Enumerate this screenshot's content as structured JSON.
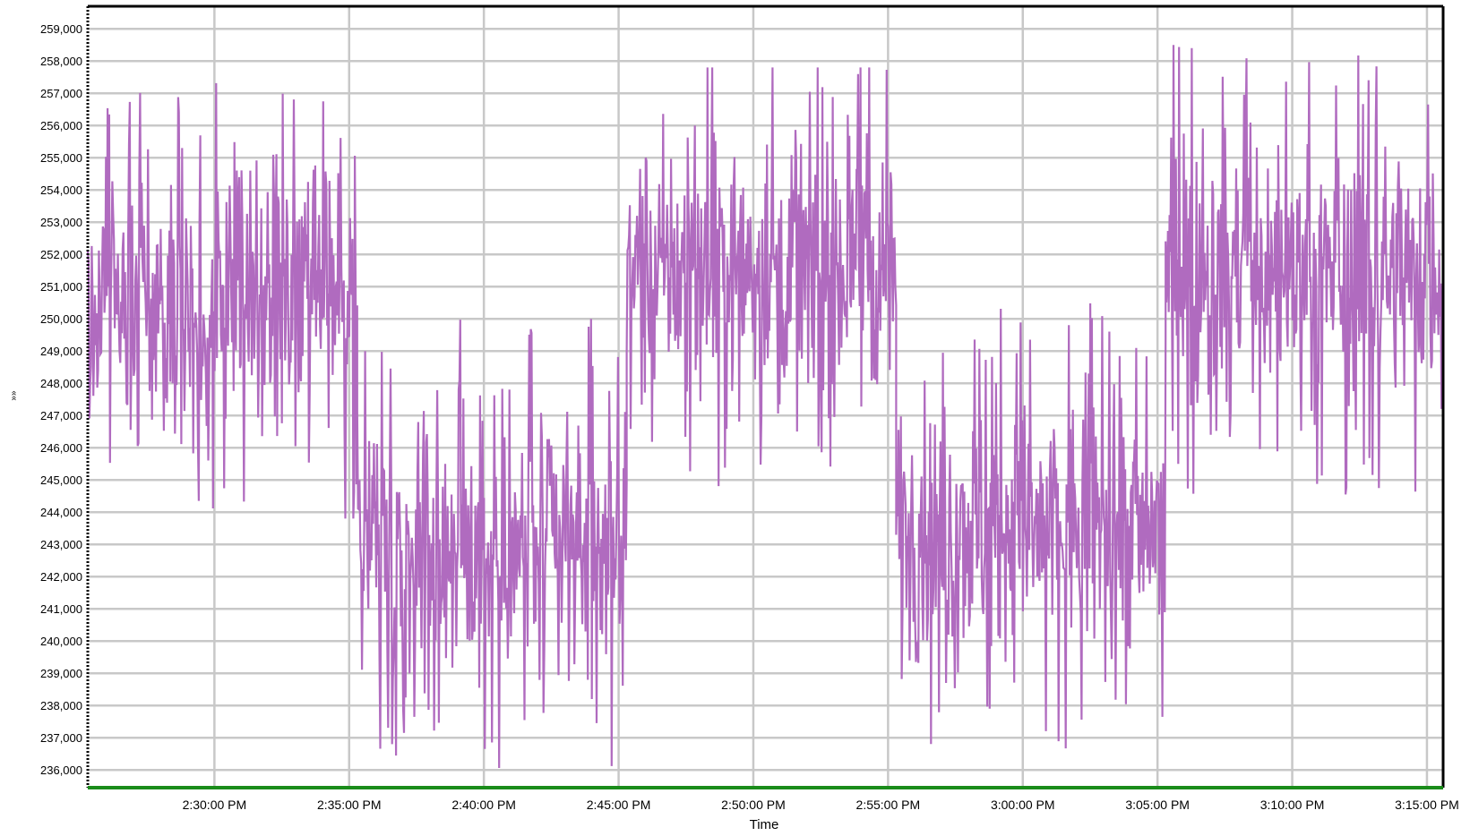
{
  "chart_data": {
    "type": "line",
    "title": "",
    "xlabel": "Time",
    "ylabel": "»»",
    "x_tick_labels": [
      "2:30:00 PM",
      "2:35:00 PM",
      "2:40:00 PM",
      "2:45:00 PM",
      "2:50:00 PM",
      "2:55:00 PM",
      "3:00:00 PM",
      "3:05:00 PM",
      "3:10:00 PM",
      "3:15:00 PM"
    ],
    "x_tick_minutes": [
      30,
      35,
      40,
      45,
      50,
      55,
      60,
      65,
      70,
      75
    ],
    "xlim_minutes": [
      25.3,
      75.6
    ],
    "x_reference": "2:00:00 PM",
    "y_tick_labels": [
      "259,000",
      "258,000",
      "257,000",
      "256,000",
      "255,000",
      "254,000",
      "253,000",
      "252,000",
      "251,000",
      "250,000",
      "249,000",
      "248,000",
      "247,000",
      "246,000",
      "245,000",
      "244,000",
      "243,000",
      "242,000",
      "241,000",
      "240,000",
      "239,000",
      "238,000",
      "237,000",
      "236,000"
    ],
    "y_ticks": [
      259000,
      258000,
      257000,
      256000,
      255000,
      254000,
      253000,
      252000,
      251000,
      250000,
      249000,
      248000,
      247000,
      246000,
      245000,
      244000,
      243000,
      242000,
      241000,
      240000,
      239000,
      238000,
      237000,
      236000
    ],
    "ylim": [
      235450,
      259700
    ],
    "grid": true,
    "legend": "none",
    "series": [
      {
        "color": "#b06bbf",
        "description_points": "segments of noisy signal alternating between high and low levels",
        "segments": [
          {
            "start_min": 25.3,
            "end_min": 35.3,
            "center": 250500,
            "spread": 3500,
            "max": 258000,
            "min": 243800
          },
          {
            "start_min": 35.3,
            "end_min": 45.3,
            "center": 243000,
            "spread": 3500,
            "max": 250600,
            "min": 235500
          },
          {
            "start_min": 45.3,
            "end_min": 55.3,
            "center": 251500,
            "spread": 3500,
            "max": 257800,
            "min": 244600
          },
          {
            "start_min": 55.3,
            "end_min": 65.3,
            "center": 243500,
            "spread": 3500,
            "max": 251000,
            "min": 236500
          },
          {
            "start_min": 65.3,
            "end_min": 75.6,
            "center": 251500,
            "spread": 3500,
            "max": 259600,
            "min": 244500
          }
        ]
      }
    ],
    "colors": {
      "line": "#b06bbf",
      "grid": "#c8c8c8",
      "frame": "#000000",
      "baseline": "#1a8c1a"
    }
  }
}
